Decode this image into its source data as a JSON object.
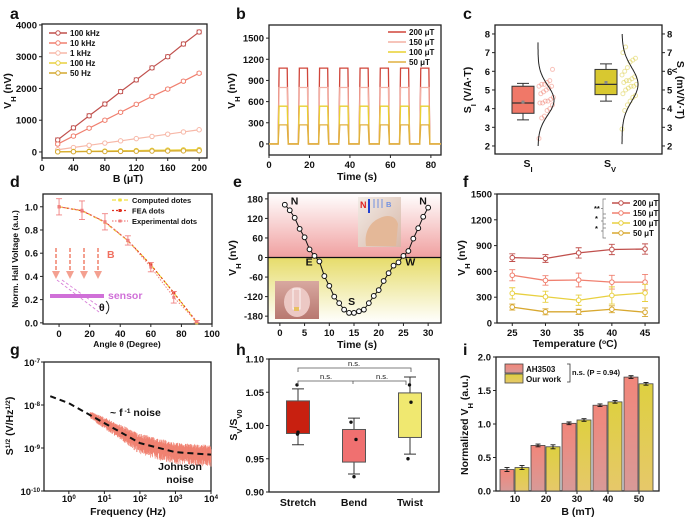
{
  "chart_data": [
    {
      "label": "a",
      "type": "line",
      "xlabel": [
        {
          "t": "B (μT)"
        }
      ],
      "ylabel": [
        {
          "t": "V"
        },
        {
          "t": "H",
          "sub": true
        },
        {
          "t": " (nV)"
        }
      ],
      "xlim": [
        0,
        210
      ],
      "ylim": [
        -190,
        4030
      ],
      "xticks": [
        "0",
        "40",
        "80",
        "120",
        "160",
        "200"
      ],
      "yticks": [
        "0",
        "1000",
        "2000",
        "3000",
        "4000"
      ],
      "x": [
        20,
        40,
        60,
        80,
        100,
        120,
        140,
        160,
        180,
        200
      ],
      "legend": "top-left",
      "series": [
        {
          "name": "100 kHz",
          "color": "#c0504d",
          "values": [
            380,
            760,
            1140,
            1510,
            1900,
            2270,
            2650,
            3000,
            3400,
            3780
          ],
          "error": 60
        },
        {
          "name": "10 kHz",
          "color": "#f08070",
          "values": [
            250,
            500,
            750,
            1000,
            1250,
            1500,
            1750,
            1980,
            2230,
            2480
          ],
          "error": 40
        },
        {
          "name": "1 kHz",
          "color": "#f7b8a8",
          "values": [
            70,
            140,
            210,
            280,
            350,
            420,
            490,
            560,
            630,
            700
          ],
          "error": 15
        },
        {
          "name": "100 Hz",
          "color": "#e8d040",
          "values": [
            8,
            15,
            23,
            30,
            38,
            45,
            53,
            60,
            68,
            75
          ],
          "error": 10
        },
        {
          "name": "50 Hz",
          "color": "#d4a830",
          "values": [
            4,
            8,
            12,
            15,
            19,
            23,
            27,
            30,
            34,
            38
          ],
          "error": 8
        }
      ]
    },
    {
      "label": "b",
      "type": "line",
      "xlabel": [
        {
          "t": "Time (s)"
        }
      ],
      "ylabel": [
        {
          "t": "V"
        },
        {
          "t": "H",
          "sub": true
        },
        {
          "t": " (nV)"
        }
      ],
      "xlim": [
        0,
        85
      ],
      "ylim": [
        -157,
        1686
      ],
      "xticks": [
        "0",
        "20",
        "40",
        "60",
        "80"
      ],
      "yticks": [
        "0",
        "300",
        "600",
        "900",
        "1200",
        "1500"
      ],
      "legend": "top-right",
      "pulses_on": [
        [
          4.5,
          9.5
        ],
        [
          14.5,
          19.5
        ],
        [
          24.5,
          29.5
        ],
        [
          34.5,
          39.5
        ],
        [
          44.5,
          49.5
        ],
        [
          54.5,
          59.5
        ],
        [
          64.5,
          69.5
        ],
        [
          74.5,
          79.5
        ]
      ],
      "series": [
        {
          "name": "200 μT",
          "color": "#d0453a",
          "level": 1075
        },
        {
          "name": "150 μT",
          "color": "#f4b0a4",
          "level": 800
        },
        {
          "name": "100 μT",
          "color": "#e8d030",
          "level": 535
        },
        {
          "name": "50 μT",
          "color": "#e0b040",
          "level": 270
        }
      ]
    },
    {
      "label": "c",
      "type": "box",
      "ylabel": [
        {
          "t": "S"
        },
        {
          "t": "I",
          "sub": true
        },
        {
          "t": " (V/A·T)"
        }
      ],
      "ylabel_right": [
        {
          "t": "S"
        },
        {
          "t": "V",
          "sub": true
        },
        {
          "t": " (mV/V·T)"
        }
      ],
      "ylim": [
        1.57,
        8.48
      ],
      "yticks": [
        "2",
        "3",
        "4",
        "5",
        "6",
        "7",
        "8"
      ],
      "categories": [
        {
          "name": [
            {
              "t": "S"
            },
            {
              "t": "I",
              "sub": true
            }
          ],
          "color": "#f07868",
          "q1": 3.75,
          "median": 4.3,
          "q3": 5.2,
          "whisker_low": 3.4,
          "whisker_high": 5.35,
          "mean": 4.35,
          "dist_mean": 4.45,
          "dist_sd": 0.8,
          "dist_range": [
            2.0,
            7.55
          ],
          "points": [
            2.4,
            3.5,
            3.6,
            3.9,
            4.0,
            4.2,
            4.3,
            4.3,
            4.4,
            4.4,
            4.5,
            4.6,
            4.8,
            4.9,
            5.0,
            5.1,
            5.2,
            5.2,
            5.3,
            5.3,
            5.4,
            5.5,
            6.1
          ]
        },
        {
          "name": [
            {
              "t": "S"
            },
            {
              "t": "V",
              "sub": true
            }
          ],
          "color": "#d8c830",
          "q1": 4.75,
          "median": 5.3,
          "q3": 6.1,
          "whisker_low": 4.4,
          "whisker_high": 6.4,
          "mean": 5.4,
          "dist_mean": 5.3,
          "dist_sd": 0.9,
          "dist_range": [
            2.1,
            8.0
          ],
          "points": [
            2.9,
            3.9,
            4.2,
            4.4,
            4.6,
            4.7,
            4.8,
            5.0,
            5.1,
            5.2,
            5.2,
            5.3,
            5.4,
            5.5,
            5.5,
            5.6,
            5.7,
            5.8,
            6.0,
            6.2,
            6.5,
            6.6,
            6.7,
            7.0,
            7.3
          ]
        }
      ]
    },
    {
      "label": "d",
      "type": "line",
      "xlabel": [
        {
          "t": "Angle θ (Degree)"
        }
      ],
      "ylabel": [
        {
          "t": "Norm. Hall Voltage (a.u.)"
        }
      ],
      "xlim": [
        -10.5,
        100
      ],
      "ylim": [
        -0.01,
        1.11
      ],
      "xticks": [
        "0",
        "20",
        "40",
        "60",
        "80",
        "100"
      ],
      "yticks": [
        "0.0",
        "0.2",
        "0.4",
        "0.6",
        "0.8",
        "1.0"
      ],
      "x": [
        0,
        15,
        30,
        45,
        60,
        75,
        90
      ],
      "legend": "top-right",
      "series": [
        {
          "name": "Computed dotes",
          "color": "#f0e040",
          "values": [
            1.0,
            0.966,
            0.866,
            0.707,
            0.5,
            0.259,
            0.0
          ]
        },
        {
          "name": "FEA dots",
          "color": "#e03020",
          "values": [
            1.0,
            0.965,
            0.87,
            0.71,
            0.5,
            0.26,
            0.01
          ]
        },
        {
          "name": "Experimental dots",
          "color": "#f08080",
          "values": [
            1.0,
            0.97,
            0.87,
            0.71,
            0.48,
            0.22,
            0.01
          ],
          "errors": [
            0.07,
            0.08,
            0.07,
            0.04,
            0.04,
            0.05,
            0.01
          ]
        }
      ],
      "annotations": {
        "field": "B",
        "sensor": "sensor",
        "angle": "θ"
      }
    },
    {
      "label": "e",
      "type": "line",
      "xlabel": [
        {
          "t": "Time (s)"
        }
      ],
      "ylabel": [
        {
          "t": "V"
        },
        {
          "t": "H",
          "sub": true
        },
        {
          "t": " (nV)"
        }
      ],
      "xlim": [
        -2.4,
        32.6
      ],
      "ylim": [
        -201,
        198
      ],
      "xticks": [
        "0",
        "5",
        "10",
        "15",
        "20",
        "25",
        "30"
      ],
      "yticks": [
        "-180",
        "-120",
        "-60",
        "0",
        "60",
        "120",
        "180"
      ],
      "x": [
        1,
        2,
        3,
        4,
        5,
        6,
        7,
        8,
        9,
        10,
        11,
        12,
        13,
        14,
        15,
        16,
        17,
        18,
        19,
        20,
        21,
        22,
        23,
        24,
        25,
        26,
        27,
        28,
        29,
        30
      ],
      "values": [
        162,
        145,
        122,
        88,
        62,
        25,
        5,
        -12,
        -57,
        -87,
        -120,
        -140,
        -160,
        -170,
        -170,
        -165,
        -160,
        -140,
        -118,
        -100,
        -72,
        -48,
        -25,
        -15,
        5,
        20,
        58,
        90,
        125,
        153
      ],
      "direction_labels": [
        "N",
        "E",
        "S",
        "W",
        "N"
      ],
      "inset": {
        "north": "N",
        "field": "B"
      },
      "colors": {
        "positive": "#f0a0a0",
        "negative": "#e6dc6a"
      }
    },
    {
      "label": "f",
      "type": "line",
      "xlabel": [
        {
          "t": "Temperature ("
        },
        {
          "t": "o",
          "sup": true
        },
        {
          "t": "C)"
        }
      ],
      "ylabel": [
        {
          "t": "V"
        },
        {
          "t": "H",
          "sub": true
        },
        {
          "t": " (nV)"
        }
      ],
      "xlim": [
        22.7,
        47.1
      ],
      "ylim": [
        0,
        1500
      ],
      "xticks": [
        "25",
        "30",
        "35",
        "40",
        "45"
      ],
      "yticks": [
        "0",
        "300",
        "600",
        "900",
        "1200",
        "1500"
      ],
      "x": [
        25,
        30,
        35,
        40,
        45
      ],
      "legend": "top-right",
      "significance": [
        "**",
        "*",
        "*"
      ],
      "series": [
        {
          "name": "200 μT",
          "color": "#c0504d",
          "values": [
            760,
            750,
            815,
            855,
            860
          ],
          "errors": [
            45,
            45,
            60,
            60,
            60
          ]
        },
        {
          "name": "150 μT",
          "color": "#f08070",
          "values": [
            555,
            495,
            500,
            475,
            475
          ],
          "errors": [
            65,
            55,
            80,
            80,
            90
          ]
        },
        {
          "name": "100 μT",
          "color": "#e8d040",
          "values": [
            345,
            305,
            265,
            320,
            350
          ],
          "errors": [
            65,
            65,
            60,
            100,
            100
          ]
        },
        {
          "name": "50 μT",
          "color": "#d8a830",
          "values": [
            185,
            130,
            130,
            160,
            125
          ],
          "errors": [
            35,
            35,
            30,
            40,
            50
          ]
        }
      ]
    },
    {
      "label": "g",
      "type": "line",
      "xlabel": [
        {
          "t": "Frequency (Hz)"
        }
      ],
      "ylabel": [
        {
          "t": "S"
        },
        {
          "t": "1/2",
          "sup": true
        },
        {
          "t": " (V/Hz"
        },
        {
          "t": "1/2",
          "sup": true
        },
        {
          "t": ")"
        }
      ],
      "x_scale": "log",
      "y_scale": "log",
      "xlim": [
        0.2,
        10000
      ],
      "ylim": [
        1e-10,
        1e-07
      ],
      "xticks": [
        [
          {
            "t": "10"
          },
          {
            "t": "0",
            "sup": true
          }
        ],
        [
          {
            "t": "10"
          },
          {
            "t": "1",
            "sup": true
          }
        ],
        [
          {
            "t": "10"
          },
          {
            "t": "2",
            "sup": true
          }
        ],
        [
          {
            "t": "10"
          },
          {
            "t": "3",
            "sup": true
          }
        ],
        [
          {
            "t": "10"
          },
          {
            "t": "4",
            "sup": true
          }
        ]
      ],
      "yticks": [
        [
          {
            "t": "10"
          },
          {
            "t": "-10",
            "sup": true
          }
        ],
        [
          {
            "t": "10"
          },
          {
            "t": "-9",
            "sup": true
          }
        ],
        [
          {
            "t": "10"
          },
          {
            "t": "-8",
            "sup": true
          }
        ],
        [
          {
            "t": "10"
          },
          {
            "t": "-7",
            "sup": true
          }
        ]
      ],
      "fit": [
        [
          0.3,
          1.6e-08
        ],
        [
          1,
          1.1e-08
        ],
        [
          10,
          3.8e-09
        ],
        [
          100,
          1.3e-09
        ],
        [
          1000,
          8e-10
        ],
        [
          10000,
          7e-10
        ]
      ],
      "noise_range_hz": [
        4,
        10000
      ],
      "noise_color": "#f08070",
      "annotations": {
        "flicker": [
          {
            "t": "~ "
          },
          {
            "t": "f"
          },
          {
            "t": " -1",
            "sup": true
          },
          {
            "t": " noise"
          }
        ],
        "johnson_1": "Johnson",
        "johnson_2": "noise"
      }
    },
    {
      "label": "h",
      "type": "box",
      "ylabel": [
        {
          "t": "S"
        },
        {
          "t": "V",
          "sub": true
        },
        {
          "t": "/S"
        },
        {
          "t": "V0",
          "sub": true
        }
      ],
      "ylim": [
        0.9,
        1.1
      ],
      "yticks": [
        "0.90",
        "0.95",
        "1.00",
        "1.05",
        "1.10"
      ],
      "categories": [
        {
          "name": "Stretch",
          "color": "#c82010",
          "q1": 0.988,
          "q3": 1.037,
          "whisker_low": 0.971,
          "whisker_high": 1.055,
          "points": [
            1.061,
            0.99,
            0.987
          ]
        },
        {
          "name": "Bend",
          "color": "#f07070",
          "q1": 0.945,
          "q3": 0.994,
          "whisker_low": 0.927,
          "whisker_high": 1.011,
          "points": [
            1.005,
            0.979,
            0.923
          ]
        },
        {
          "name": "Twist",
          "color": "#f0e870",
          "q1": 0.982,
          "q3": 1.049,
          "whisker_low": 0.957,
          "whisker_high": 1.073,
          "points": [
            1.061,
            1.035,
            0.95
          ]
        }
      ],
      "significance": [
        "n.s.",
        "n.s.",
        "n.s."
      ]
    },
    {
      "label": "i",
      "type": "bar",
      "xlabel": [
        {
          "t": "B (mT)"
        }
      ],
      "ylabel": [
        {
          "t": "Normalized V"
        },
        {
          "t": "H",
          "sub": true
        },
        {
          "t": " (a.u.)"
        }
      ],
      "ylim": [
        0,
        2
      ],
      "yticks": [
        "0.0",
        "0.5",
        "1.0",
        "1.5",
        "2.0"
      ],
      "categories": [
        "10",
        "20",
        "30",
        "40",
        "50"
      ],
      "legend": "top-left",
      "series": [
        {
          "name": "AH3503",
          "color": "#f08070",
          "values": [
            0.32,
            0.68,
            1.01,
            1.28,
            1.7
          ],
          "errors": [
            0.03,
            0.02,
            0.02,
            0.02,
            0.02
          ]
        },
        {
          "name": "Our work",
          "color": "#e0d040",
          "values": [
            0.35,
            0.66,
            1.06,
            1.33,
            1.6
          ],
          "errors": [
            0.03,
            0.03,
            0.02,
            0.02,
            0.02
          ]
        }
      ],
      "significance": "n.s. (P = 0.94)"
    }
  ]
}
